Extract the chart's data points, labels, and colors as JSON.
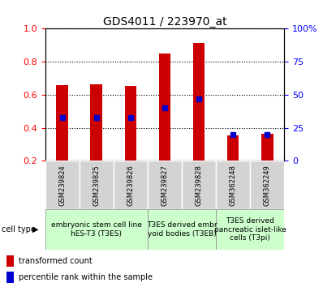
{
  "title": "GDS4011 / 223970_at",
  "samples": [
    "GSM239824",
    "GSM239825",
    "GSM239826",
    "GSM239827",
    "GSM239828",
    "GSM362248",
    "GSM362249"
  ],
  "transformed_count": [
    0.66,
    0.665,
    0.655,
    0.85,
    0.915,
    0.355,
    0.365
  ],
  "percentile_rank_pct": [
    33,
    33,
    33,
    40,
    47,
    20,
    20
  ],
  "ylim_left": [
    0.2,
    1.0
  ],
  "ylim_right": [
    0,
    100
  ],
  "yticks_left": [
    0.2,
    0.4,
    0.6,
    0.8,
    1.0
  ],
  "yticks_right": [
    0,
    25,
    50,
    75,
    100
  ],
  "ytick_labels_right": [
    "0",
    "25",
    "50",
    "75",
    "100%"
  ],
  "bar_color": "#cc0000",
  "dot_color": "#0000cc",
  "groups": [
    {
      "label": "embryonic stem cell line\nhES-T3 (T3ES)",
      "start": 0,
      "end": 2,
      "color": "#ccffcc"
    },
    {
      "label": "T3ES derived embr\nyoid bodies (T3EB)",
      "start": 3,
      "end": 4,
      "color": "#ccffcc"
    },
    {
      "label": "T3ES derived\npancreatic islet-like\ncells (T3pi)",
      "start": 5,
      "end": 6,
      "color": "#ccffcc"
    }
  ],
  "cell_type_label": "cell type",
  "legend_items": [
    {
      "label": "transformed count",
      "color": "#cc0000"
    },
    {
      "label": "percentile rank within the sample",
      "color": "#0000cc"
    }
  ],
  "bar_width": 0.35,
  "title_fontsize": 10,
  "tick_fontsize": 8,
  "sample_fontsize": 6,
  "group_label_fontsize": 6.5,
  "legend_fontsize": 7,
  "n_samples": 7,
  "bg_color": "#ffffff",
  "plot_bg": "#ffffff",
  "sample_box_color": "#d3d3d3"
}
